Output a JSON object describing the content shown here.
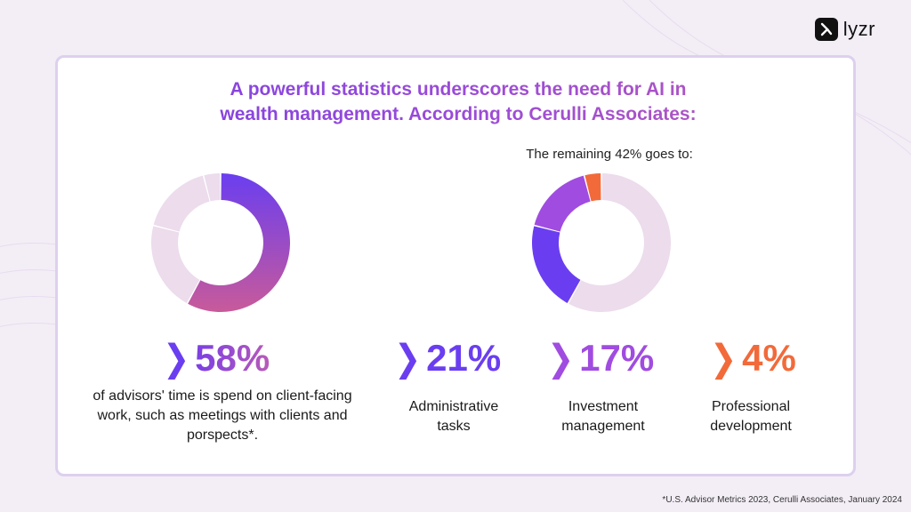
{
  "brand": {
    "name": "lyzr"
  },
  "title": {
    "line1": "A powerful statistics underscores the need for AI in",
    "line2": "wealth management. According to Cerulli Associates:"
  },
  "subtitle": "The remaining 42% goes to:",
  "colors": {
    "purple": "#6a3ef0",
    "violet": "#a04ce0",
    "orange": "#f26a3a",
    "pink": "#ecdcec",
    "magenta": "#c85a9a"
  },
  "chart_data": [
    {
      "type": "pie",
      "values": [
        58,
        21,
        17,
        4
      ],
      "labels": [
        "Client-facing work",
        "Administrative tasks",
        "Investment management",
        "Professional development"
      ]
    },
    {
      "type": "pie",
      "values": [
        58,
        21,
        17,
        4
      ],
      "labels": [
        "Client-facing work",
        "Administrative tasks",
        "Investment management",
        "Professional development"
      ]
    }
  ],
  "stats": [
    {
      "value": "58%",
      "desc": "of advisors' time is spend on client-facing work, such as meetings with clients and porspects*."
    },
    {
      "value": "21%",
      "desc": "Administrative tasks"
    },
    {
      "value": "17%",
      "desc": "Investment management"
    },
    {
      "value": "4%",
      "desc": "Professional development"
    }
  ],
  "footnote": "*U.S. Advisor Metrics 2023, Cerulli Associates, January 2024"
}
